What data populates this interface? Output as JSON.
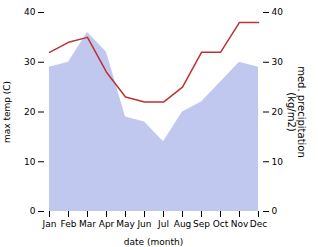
{
  "chart_data": {
    "type": "line",
    "xlabel": "date (month)",
    "ylabel": "max temp (C)",
    "y2label": "med. precipitation\n(kg/m2)",
    "categories": [
      "Jan",
      "Feb",
      "Mar",
      "Apr",
      "May",
      "Jun",
      "Jul",
      "Aug",
      "Sep",
      "Oct",
      "Nov",
      "Dec"
    ],
    "series": [
      {
        "type": "area",
        "color": "#c0c8f0",
        "values": [
          29,
          30,
          36,
          32,
          19,
          18,
          14,
          20,
          22,
          26,
          30,
          29
        ]
      },
      {
        "type": "line",
        "color": "#c03030",
        "axis": "y2",
        "values": [
          32,
          34,
          35,
          28,
          23,
          22,
          22,
          25,
          32,
          32,
          38,
          38
        ]
      }
    ],
    "ylim": [
      0,
      40
    ],
    "yticks": [
      0,
      10,
      20,
      30,
      40
    ],
    "y2lim": [
      0,
      40
    ],
    "y2ticks": [
      0,
      10,
      20,
      30,
      40
    ]
  }
}
